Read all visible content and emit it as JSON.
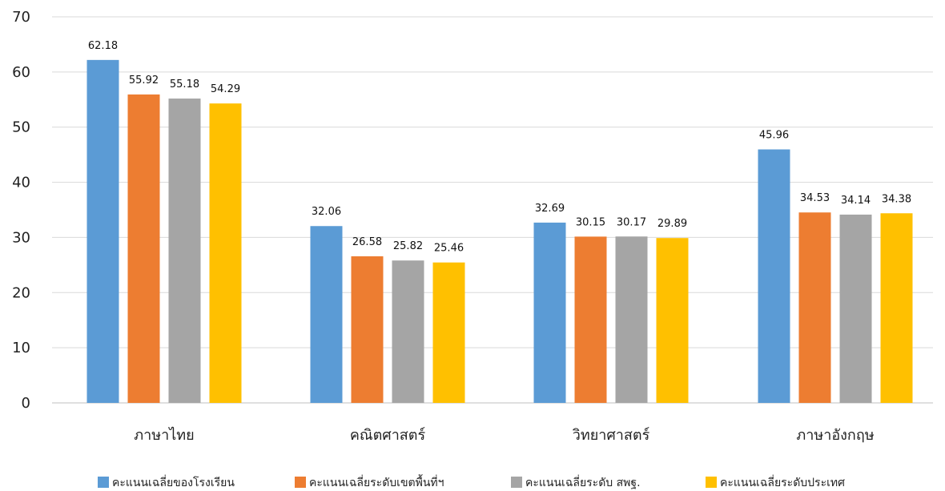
{
  "chart_data": {
    "type": "bar",
    "categories": [
      "ภาษาไทย",
      "คณิตศาสตร์",
      "วิทยาศาสตร์",
      "ภาษาอังกฤษ"
    ],
    "series": [
      {
        "name": "คะแนนเฉลี่ยของโรงเรียน",
        "color": "#5b9bd5",
        "values": [
          62.18,
          32.06,
          32.69,
          45.96
        ]
      },
      {
        "name": "คะแนนเฉลี่ยระดับเขตพื้นที่ฯ",
        "color": "#ed7d31",
        "values": [
          55.92,
          26.58,
          30.15,
          34.53
        ]
      },
      {
        "name": "คะแนนเฉลี่ยระดับ สพฐ.",
        "color": "#a5a5a5",
        "values": [
          55.18,
          25.82,
          30.17,
          34.14
        ]
      },
      {
        "name": "คะแนนเฉลี่ยระดับประเทศ",
        "color": "#ffc000",
        "values": [
          54.29,
          25.46,
          29.89,
          34.38
        ]
      }
    ],
    "yticks": [
      "0",
      "10",
      "20",
      "30",
      "40",
      "50",
      "60",
      "70"
    ],
    "ylim": [
      0,
      70
    ],
    "grid": true,
    "legend_position": "bottom"
  }
}
